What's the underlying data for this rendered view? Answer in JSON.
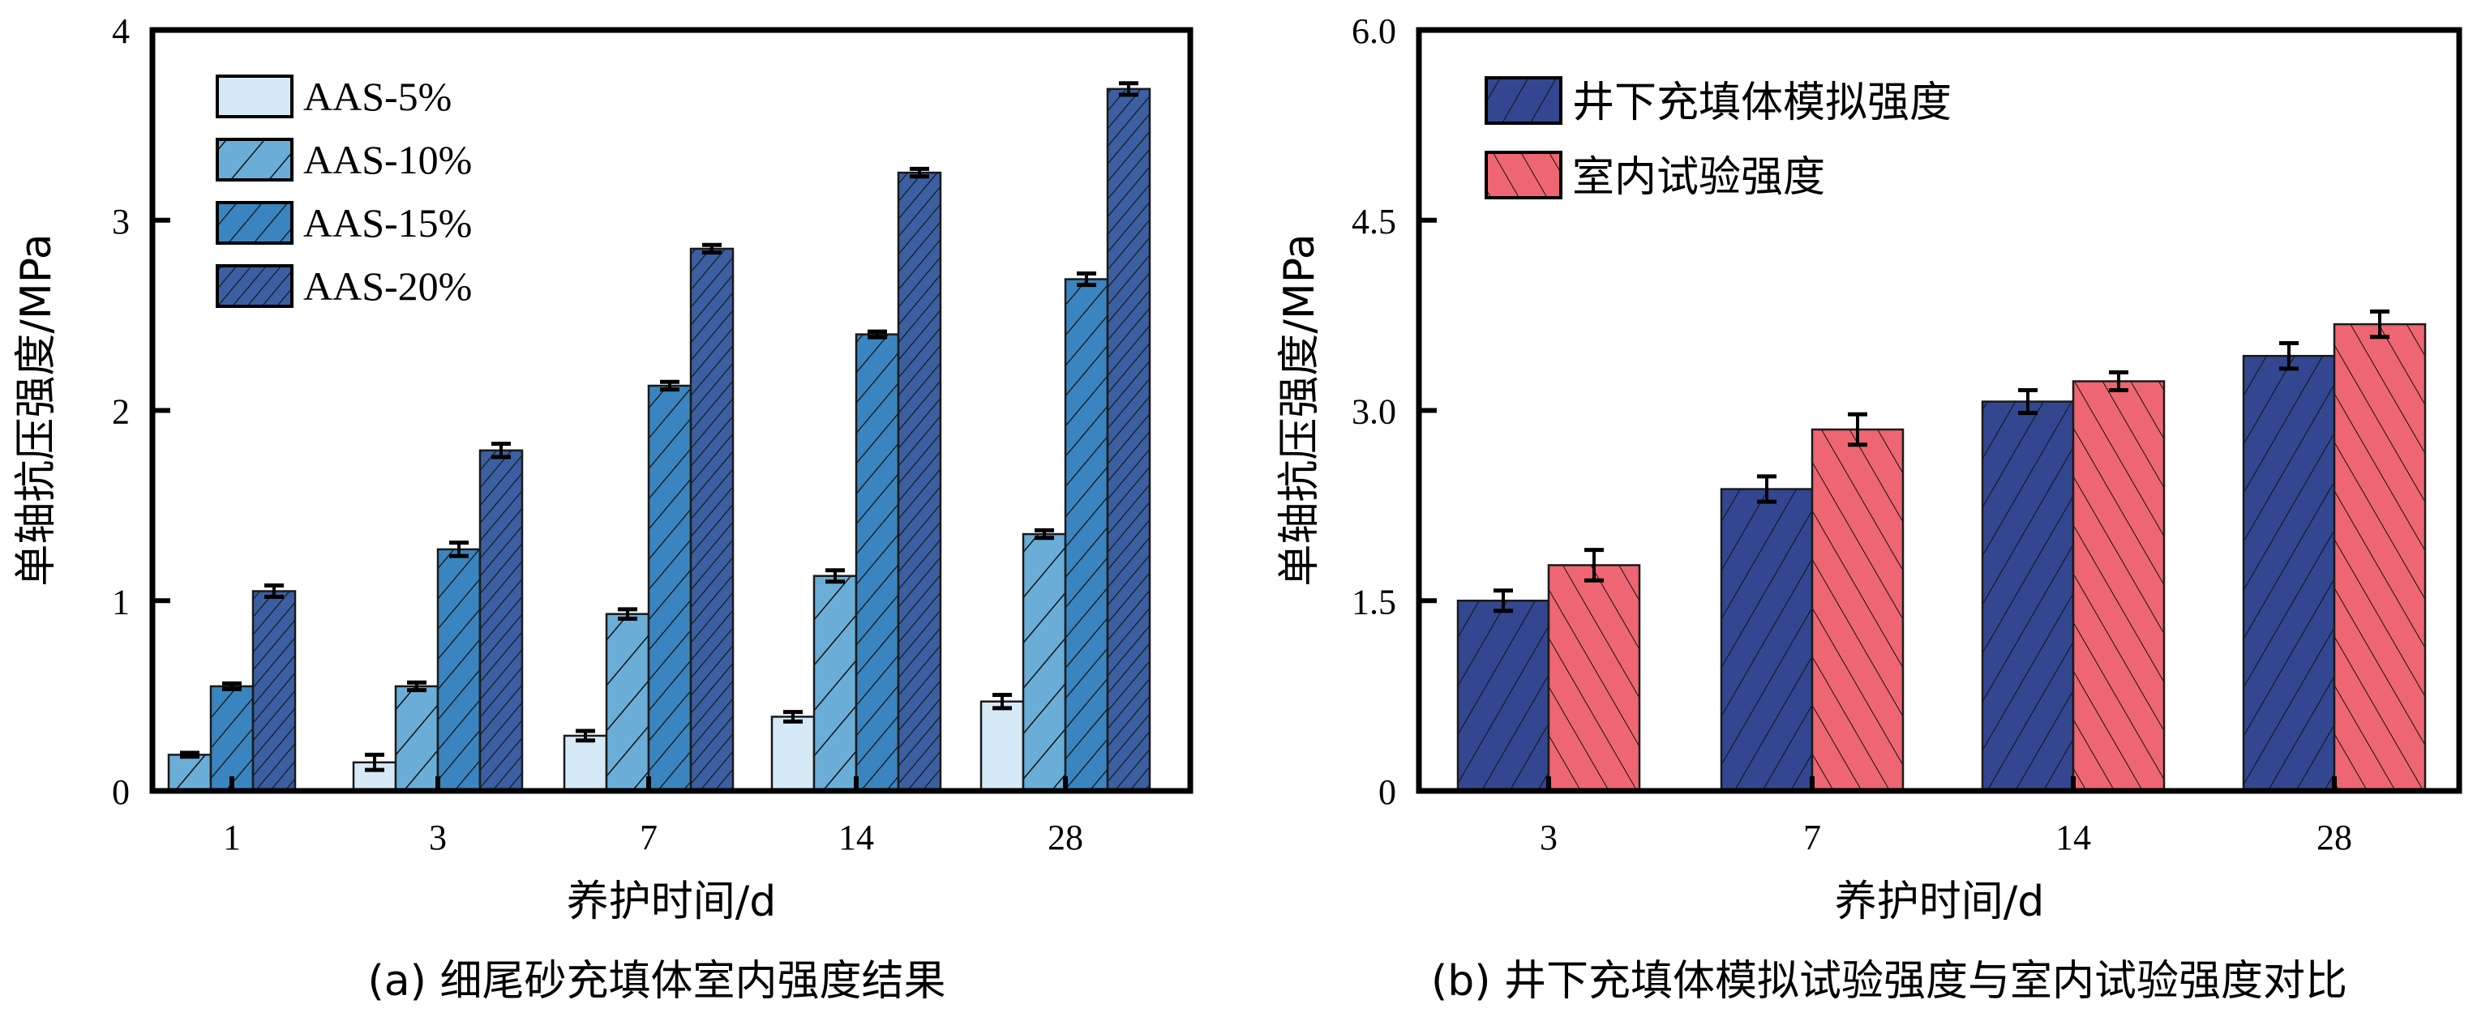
{
  "chart_data": [
    {
      "id": "a",
      "type": "bar",
      "caption": "(a) 细尾砂充填体室内强度结果",
      "xlabel": "养护时间/d",
      "ylabel": "单轴抗压强度/MPa",
      "categories": [
        "1",
        "3",
        "7",
        "14",
        "28"
      ],
      "ylim": [
        0,
        4
      ],
      "yticks": [
        "0",
        "1",
        "2",
        "3",
        "4"
      ],
      "ytick_values": [
        0,
        1,
        2,
        3,
        4
      ],
      "legend_position": "top-left",
      "series": [
        {
          "name": "AAS-5%",
          "color": "#d6e9f6",
          "hatch": "none",
          "values": [
            null,
            0.15,
            0.29,
            0.39,
            0.47
          ],
          "errors": [
            null,
            0.04,
            0.025,
            0.025,
            0.035
          ]
        },
        {
          "name": "AAS-10%",
          "color": "#6aaed8",
          "hatch": "sparse",
          "values": [
            0.19,
            0.55,
            0.93,
            1.13,
            1.35
          ],
          "errors": [
            0.01,
            0.02,
            0.025,
            0.03,
            0.02
          ]
        },
        {
          "name": "AAS-15%",
          "color": "#3a85bf",
          "hatch": "medium",
          "values": [
            0.55,
            1.27,
            2.13,
            2.4,
            2.69
          ],
          "errors": [
            0.015,
            0.035,
            0.02,
            0.015,
            0.03
          ]
        },
        {
          "name": "AAS-20%",
          "color": "#3b5fa0",
          "hatch": "dense",
          "values": [
            1.05,
            1.79,
            2.85,
            3.25,
            3.69
          ],
          "errors": [
            0.03,
            0.035,
            0.02,
            0.02,
            0.03
          ]
        }
      ]
    },
    {
      "id": "b",
      "type": "bar",
      "caption": "(b) 井下充填体模拟试验强度与室内试验强度对比",
      "xlabel": "养护时间/d",
      "ylabel": "单轴抗压强度/MPa",
      "categories": [
        "3",
        "7",
        "14",
        "28"
      ],
      "ylim": [
        0,
        6
      ],
      "yticks": [
        "0",
        "1.5",
        "3.0",
        "4.5",
        "6.0"
      ],
      "ytick_values": [
        0,
        1.5,
        3.0,
        4.5,
        6.0
      ],
      "legend_position": "top-left",
      "series": [
        {
          "name": "井下充填体模拟强度",
          "color": "#334690",
          "hatch": "forward",
          "values": [
            1.5,
            2.38,
            3.07,
            3.43
          ],
          "errors": [
            0.08,
            0.1,
            0.09,
            0.1
          ]
        },
        {
          "name": "室内试验强度",
          "color": "#ee6672",
          "hatch": "backward",
          "values": [
            1.78,
            2.85,
            3.23,
            3.68
          ],
          "errors": [
            0.12,
            0.12,
            0.07,
            0.1
          ]
        }
      ]
    }
  ]
}
